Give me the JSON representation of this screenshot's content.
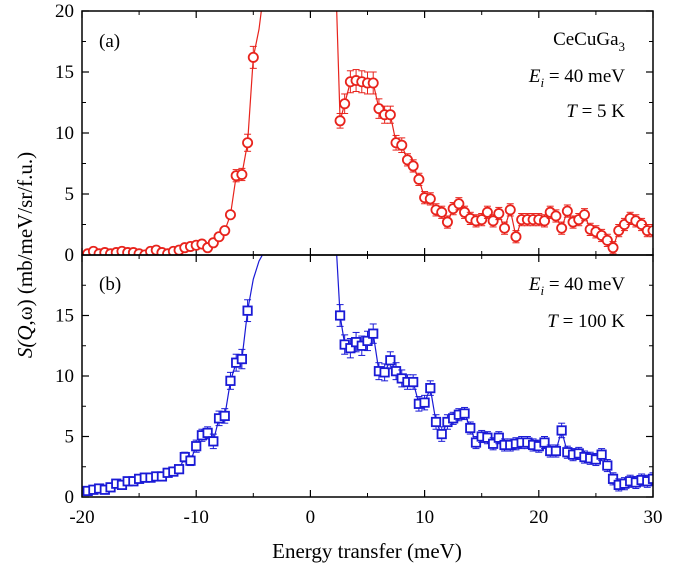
{
  "chart_data": [
    {
      "type": "scatter",
      "panel_label": "(a)",
      "annotations": {
        "compound": "CeCuGa",
        "compound_sub": "3",
        "ei_var": "E",
        "ei_sub": "i",
        "ei_val": " = 40 meV",
        "t_var": "T",
        "t_val": " = 5 K"
      },
      "xlim": [
        -20,
        30
      ],
      "ylim": [
        0,
        20
      ],
      "xticks": [
        "-20",
        "-10",
        "0",
        "10",
        "20",
        "30"
      ],
      "yticks": [
        "0",
        "5",
        "10",
        "15",
        "20"
      ],
      "color": "#e8231c",
      "marker": "circle",
      "series": [
        {
          "x": [
            -19.5,
            -19.0,
            -18.5,
            -18.0,
            -17.5,
            -17.0,
            -16.5,
            -16.0,
            -15.5,
            -15.0,
            -14.5,
            -14.0,
            -13.5,
            -13.0,
            -12.5,
            -12.0,
            -11.5,
            -11.0,
            -10.5,
            -10.0,
            -9.5,
            -9.0,
            -8.5,
            -8.0,
            -7.5,
            -7.0,
            -6.5,
            -6.0,
            -5.5,
            -5.0,
            -4.5,
            -4.3
          ],
          "y": [
            0.1,
            0.3,
            0.1,
            0.2,
            0.1,
            0.2,
            0.3,
            0.2,
            0.2,
            0.1,
            0.0,
            0.3,
            0.4,
            0.2,
            0.1,
            0.3,
            0.4,
            0.6,
            0.7,
            0.8,
            0.9,
            0.6,
            1.0,
            1.5,
            2.0,
            3.3,
            6.5,
            6.6,
            9.2,
            16.2,
            18.5,
            20.0
          ],
          "err": [
            0.3,
            0.3,
            0.3,
            0.3,
            0.3,
            0.3,
            0.3,
            0.3,
            0.3,
            0.3,
            0.3,
            0.3,
            0.3,
            0.3,
            0.3,
            0.3,
            0.3,
            0.3,
            0.3,
            0.3,
            0.3,
            0.3,
            0.3,
            0.3,
            0.3,
            0.3,
            0.5,
            0.5,
            0.7,
            0.9,
            0,
            0
          ],
          "marked": [
            true,
            true,
            true,
            true,
            true,
            true,
            true,
            true,
            true,
            true,
            true,
            true,
            true,
            true,
            true,
            true,
            true,
            true,
            true,
            true,
            true,
            true,
            true,
            true,
            true,
            true,
            true,
            true,
            true,
            true,
            false,
            false
          ]
        },
        {
          "x": [
            2.3,
            2.6,
            3.0,
            3.5,
            4.0,
            4.5,
            5.0,
            5.5,
            6.0,
            6.5,
            7.0,
            7.5,
            8.0,
            8.5,
            9.0,
            9.5,
            10.0,
            10.5,
            11.0,
            11.5,
            12.0,
            12.5,
            13.0,
            13.5,
            14.0,
            14.5,
            15.0,
            15.5,
            16.0,
            16.5,
            17.0,
            17.5,
            18.0,
            18.5,
            19.0,
            19.5,
            20.0,
            20.5,
            21.0,
            21.5,
            22.0,
            22.5,
            23.0,
            23.5,
            24.0,
            24.5,
            25.0,
            25.5,
            26.0,
            26.5,
            27.0,
            27.5,
            28.0,
            28.5,
            29.0,
            29.5,
            30.0
          ],
          "y": [
            20.0,
            11.0,
            12.4,
            14.2,
            14.3,
            14.2,
            14.1,
            14.1,
            12.0,
            11.5,
            11.5,
            9.2,
            9.0,
            7.8,
            7.3,
            6.2,
            4.7,
            4.6,
            3.7,
            3.5,
            2.7,
            3.8,
            4.2,
            3.5,
            3.0,
            2.8,
            2.9,
            3.5,
            2.8,
            3.4,
            2.2,
            3.7,
            1.5,
            2.9,
            2.9,
            2.9,
            2.9,
            2.8,
            3.5,
            3.2,
            2.2,
            3.6,
            2.7,
            2.9,
            3.3,
            2.1,
            1.9,
            1.6,
            1.2,
            0.6,
            2.0,
            2.5,
            3.0,
            2.8,
            2.5,
            2.0,
            2.0
          ],
          "err": [
            0,
            0.6,
            0.8,
            0.9,
            0.9,
            0.9,
            0.9,
            0.9,
            0.8,
            0.7,
            0.7,
            0.6,
            0.6,
            0.5,
            0.5,
            0.5,
            0.5,
            0.5,
            0.5,
            0.5,
            0.5,
            0.5,
            0.5,
            0.5,
            0.5,
            0.5,
            0.5,
            0.5,
            0.5,
            0.5,
            0.5,
            0.5,
            0.5,
            0.5,
            0.5,
            0.5,
            0.5,
            0.5,
            0.5,
            0.5,
            0.5,
            0.5,
            0.5,
            0.5,
            0.5,
            0.5,
            0.5,
            0.5,
            0.5,
            0.5,
            0.5,
            0.5,
            0.5,
            0.5,
            0.5,
            0.5,
            0.5
          ],
          "marked": [
            false,
            true,
            true,
            true,
            true,
            true,
            true,
            true,
            true,
            true,
            true,
            true,
            true,
            true,
            true,
            true,
            true,
            true,
            true,
            true,
            true,
            true,
            true,
            true,
            true,
            true,
            true,
            true,
            true,
            true,
            true,
            true,
            true,
            true,
            true,
            true,
            true,
            true,
            true,
            true,
            true,
            true,
            true,
            true,
            true,
            true,
            true,
            true,
            true,
            true,
            true,
            true,
            true,
            true,
            true,
            true,
            true
          ]
        }
      ]
    },
    {
      "type": "scatter",
      "panel_label": "(b)",
      "annotations": {
        "ei_var": "E",
        "ei_sub": "i",
        "ei_val": " = 40 meV",
        "t_var": "T",
        "t_val": " = 100 K"
      },
      "xlim": [
        -20,
        30
      ],
      "ylim": [
        0,
        20
      ],
      "xticks": [
        "-20",
        "-10",
        "0",
        "10",
        "20",
        "30"
      ],
      "yticks": [
        "0",
        "5",
        "10",
        "15"
      ],
      "color": "#1a1ad6",
      "marker": "square",
      "series": [
        {
          "x": [
            -19.5,
            -19.0,
            -18.5,
            -18.0,
            -17.5,
            -17.0,
            -16.5,
            -16.0,
            -15.5,
            -15.0,
            -14.5,
            -14.0,
            -13.5,
            -13.0,
            -12.5,
            -12.0,
            -11.5,
            -11.0,
            -10.5,
            -10.0,
            -9.5,
            -9.0,
            -8.5,
            -8.0,
            -7.5,
            -7.0,
            -6.5,
            -6.0,
            -5.5,
            -5.0,
            -4.5,
            -4.2
          ],
          "y": [
            0.5,
            0.6,
            0.7,
            0.6,
            0.8,
            1.1,
            1.0,
            1.3,
            1.3,
            1.5,
            1.6,
            1.6,
            1.7,
            1.7,
            2.0,
            2.1,
            2.3,
            3.3,
            3.0,
            4.2,
            5.1,
            5.3,
            4.6,
            6.5,
            6.7,
            9.6,
            11.1,
            11.4,
            15.4,
            18.0,
            19.5,
            20.0
          ],
          "err": [
            0.3,
            0.3,
            0.3,
            0.3,
            0.3,
            0.3,
            0.3,
            0.3,
            0.3,
            0.3,
            0.3,
            0.3,
            0.3,
            0.3,
            0.3,
            0.3,
            0.3,
            0.4,
            0.4,
            0.5,
            0.5,
            0.5,
            0.6,
            0.6,
            0.6,
            0.7,
            0.7,
            0.8,
            0.9,
            0,
            0,
            0
          ],
          "marked": [
            true,
            true,
            true,
            true,
            true,
            true,
            true,
            true,
            true,
            true,
            true,
            true,
            true,
            true,
            true,
            true,
            true,
            true,
            true,
            true,
            true,
            true,
            true,
            true,
            true,
            true,
            true,
            true,
            true,
            false,
            false,
            false
          ]
        },
        {
          "x": [
            2.3,
            2.6,
            3.0,
            3.5,
            4.0,
            4.5,
            5.0,
            5.5,
            6.0,
            6.5,
            7.0,
            7.5,
            8.0,
            8.5,
            9.0,
            9.5,
            10.0,
            10.5,
            11.0,
            11.5,
            12.0,
            12.5,
            13.0,
            13.5,
            14.0,
            14.5,
            15.0,
            15.5,
            16.0,
            16.5,
            17.0,
            17.5,
            18.0,
            18.5,
            19.0,
            19.5,
            20.0,
            20.5,
            21.0,
            21.5,
            22.0,
            22.5,
            23.0,
            23.5,
            24.0,
            24.5,
            25.0,
            25.5,
            26.0,
            26.5,
            27.0,
            27.5,
            28.0,
            28.5,
            29.0,
            29.5,
            30.0
          ],
          "y": [
            20.0,
            15.0,
            12.6,
            12.3,
            12.8,
            12.5,
            12.9,
            13.5,
            10.4,
            10.3,
            11.3,
            10.4,
            9.8,
            9.5,
            9.5,
            7.7,
            7.8,
            9.0,
            6.2,
            5.2,
            6.2,
            6.5,
            6.8,
            6.9,
            5.7,
            4.5,
            5.0,
            4.9,
            4.4,
            4.9,
            4.3,
            4.3,
            4.4,
            4.5,
            4.5,
            4.3,
            4.2,
            4.5,
            3.8,
            3.8,
            5.5,
            3.7,
            3.5,
            3.6,
            3.3,
            3.2,
            3.1,
            3.5,
            2.6,
            1.5,
            1.0,
            1.1,
            1.3,
            1.2,
            1.4,
            1.3,
            1.5
          ],
          "err": [
            0,
            0.9,
            0.8,
            0.8,
            0.8,
            0.8,
            0.8,
            0.8,
            0.7,
            0.7,
            0.7,
            0.7,
            0.7,
            0.6,
            0.6,
            0.6,
            0.6,
            0.6,
            0.6,
            0.6,
            0.6,
            0.5,
            0.5,
            0.5,
            0.5,
            0.5,
            0.5,
            0.5,
            0.5,
            0.5,
            0.5,
            0.5,
            0.5,
            0.5,
            0.5,
            0.5,
            0.5,
            0.5,
            0.5,
            0.5,
            0.6,
            0.5,
            0.5,
            0.5,
            0.5,
            0.5,
            0.5,
            0.5,
            0.5,
            0.5,
            0.5,
            0.5,
            0.5,
            0.5,
            0.5,
            0.5,
            0.5
          ],
          "marked": [
            false,
            true,
            true,
            true,
            true,
            true,
            true,
            true,
            true,
            true,
            true,
            true,
            true,
            true,
            true,
            true,
            true,
            true,
            true,
            true,
            true,
            true,
            true,
            true,
            true,
            true,
            true,
            true,
            true,
            true,
            true,
            true,
            true,
            true,
            true,
            true,
            true,
            true,
            true,
            true,
            true,
            true,
            true,
            true,
            true,
            true,
            true,
            true,
            true,
            true,
            true,
            true,
            true,
            true,
            true,
            true,
            true
          ]
        }
      ]
    }
  ],
  "axes": {
    "xlabel": "Energy transfer (meV)",
    "ylabel_prefix": "S(",
    "ylabel_q": "Q",
    "ylabel_suffix": ",ω) (mb/meV/sr/f.u.)"
  }
}
